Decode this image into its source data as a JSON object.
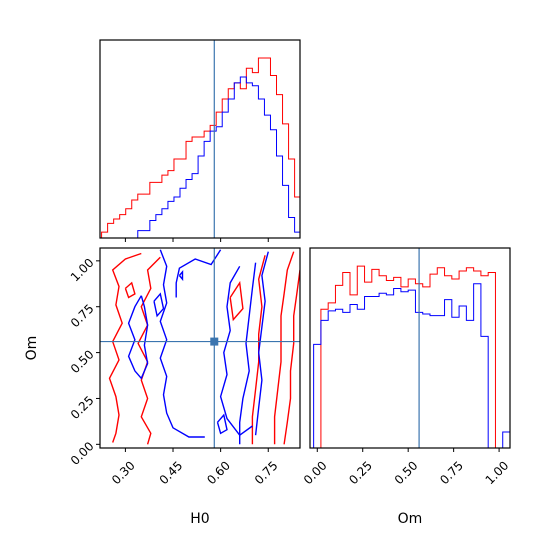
{
  "chart_data": {
    "type": "corner",
    "parameters": [
      "H0",
      "Om"
    ],
    "truth": {
      "H0": 0.58,
      "Om": 0.56
    },
    "colors": {
      "red_chain": "#ff0000",
      "blue_chain": "#0000ff",
      "truth_line": "#3b75af",
      "axes": "#000000"
    },
    "panels": [
      {
        "id": "h0-marginal",
        "type": "step-histogram",
        "xlabel": "",
        "xlim": [
          0.22,
          0.85
        ],
        "show_tick_labels": false,
        "x_ticks": [
          0.3,
          0.45,
          0.6,
          0.75
        ],
        "bin_edges": [
          0.225,
          0.244,
          0.263,
          0.282,
          0.301,
          0.32,
          0.339,
          0.358,
          0.377,
          0.396,
          0.415,
          0.434,
          0.453,
          0.472,
          0.491,
          0.51,
          0.529,
          0.548,
          0.567,
          0.586,
          0.605,
          0.624,
          0.643,
          0.662,
          0.681,
          0.7,
          0.719,
          0.738,
          0.757,
          0.776,
          0.795,
          0.814,
          0.833,
          0.852
        ],
        "series": [
          {
            "name": "",
            "color": "#ff0000",
            "counts": [
              0.4,
              1.0,
              1.3,
              1.6,
              2.0,
              2.6,
              3.0,
              3.0,
              3.8,
              3.8,
              4.3,
              4.6,
              5.4,
              5.4,
              6.6,
              6.9,
              6.9,
              7.3,
              7.7,
              8.6,
              9.5,
              10.2,
              10.6,
              10.2,
              11.6,
              11.3,
              12.3,
              12.3,
              11.1,
              9.8,
              7.8,
              5.4,
              2.8,
              0.4
            ]
          },
          {
            "name": "",
            "color": "#0000ff",
            "counts": [
              0,
              0,
              0,
              0,
              0,
              0,
              0.5,
              0.5,
              1.2,
              1.6,
              2.0,
              2.5,
              2.8,
              3.4,
              4.0,
              4.4,
              5.6,
              6.6,
              7.3,
              7.6,
              8.6,
              9.5,
              10.6,
              11.0,
              10.6,
              10.4,
              9.5,
              8.4,
              7.4,
              5.6,
              3.6,
              1.4,
              0.4,
              0
            ]
          }
        ]
      },
      {
        "id": "joint-contour",
        "type": "contour",
        "xlabel": "H0",
        "ylabel": "Om",
        "xlim": [
          0.22,
          0.85
        ],
        "ylim": [
          -0.02,
          1.07
        ],
        "x_ticks": [
          0.3,
          0.45,
          0.6,
          0.75
        ],
        "x_tick_labels": [
          "0.30",
          "0.45",
          "0.60",
          "0.75"
        ],
        "y_ticks": [
          0.0,
          0.25,
          0.5,
          0.75,
          1.0
        ],
        "y_tick_labels": [
          "0.00",
          "0.25",
          "0.50",
          "0.75",
          "1.00"
        ],
        "series": [
          {
            "name": "",
            "color": "#ff0000",
            "contours": [
              [
                [
                  0.35,
                  1.04
                ],
                [
                  0.3,
                  1.01
                ],
                [
                  0.26,
                  0.95
                ],
                [
                  0.28,
                  0.86
                ],
                [
                  0.27,
                  0.76
                ],
                [
                  0.29,
                  0.66
                ],
                [
                  0.26,
                  0.56
                ],
                [
                  0.28,
                  0.46
                ],
                [
                  0.25,
                  0.36
                ],
                [
                  0.27,
                  0.26
                ],
                [
                  0.28,
                  0.16
                ],
                [
                  0.27,
                  0.06
                ],
                [
                  0.26,
                  0.01
                ]
              ],
              [
                [
                  0.41,
                  1.02
                ],
                [
                  0.37,
                  0.95
                ],
                [
                  0.38,
                  0.85
                ],
                [
                  0.35,
                  0.75
                ],
                [
                  0.37,
                  0.65
                ],
                [
                  0.34,
                  0.55
                ],
                [
                  0.37,
                  0.45
                ],
                [
                  0.35,
                  0.35
                ],
                [
                  0.37,
                  0.25
                ],
                [
                  0.35,
                  0.15
                ],
                [
                  0.38,
                  0.06
                ],
                [
                  0.37,
                  0.0
                ]
              ],
              [
                [
                  0.74,
                  1.03
                ],
                [
                  0.72,
                  0.9
                ],
                [
                  0.73,
                  0.75
                ],
                [
                  0.72,
                  0.6
                ],
                [
                  0.72,
                  0.45
                ],
                [
                  0.71,
                  0.3
                ],
                [
                  0.7,
                  0.15
                ],
                [
                  0.7,
                  0.0
                ]
              ],
              [
                [
                  0.83,
                  1.05
                ],
                [
                  0.81,
                  0.95
                ],
                [
                  0.8,
                  0.82
                ],
                [
                  0.79,
                  0.7
                ],
                [
                  0.79,
                  0.56
                ],
                [
                  0.79,
                  0.45
                ],
                [
                  0.78,
                  0.3
                ],
                [
                  0.77,
                  0.15
                ],
                [
                  0.77,
                  0.0
                ]
              ],
              [
                [
                  0.85,
                  0.95
                ],
                [
                  0.84,
                  0.82
                ],
                [
                  0.83,
                  0.7
                ],
                [
                  0.83,
                  0.55
                ],
                [
                  0.82,
                  0.4
                ],
                [
                  0.82,
                  0.25
                ],
                [
                  0.81,
                  0.12
                ],
                [
                  0.8,
                  0.0
                ]
              ],
              [
                [
                  0.3,
                  0.85
                ],
                [
                  0.32,
                  0.88
                ],
                [
                  0.33,
                  0.82
                ],
                [
                  0.31,
                  0.8
                ],
                [
                  0.3,
                  0.85
                ]
              ],
              [
                [
                  0.63,
                  0.8
                ],
                [
                  0.66,
                  0.88
                ],
                [
                  0.67,
                  0.74
                ],
                [
                  0.64,
                  0.68
                ],
                [
                  0.63,
                  0.8
                ]
              ]
            ]
          },
          {
            "name": "",
            "color": "#0000ff",
            "contours": [
              [
                [
                  0.41,
                  1.06
                ],
                [
                  0.43,
                  0.97
                ],
                [
                  0.42,
                  0.87
                ],
                [
                  0.43,
                  0.77
                ],
                [
                  0.41,
                  0.67
                ],
                [
                  0.43,
                  0.57
                ],
                [
                  0.41,
                  0.47
                ],
                [
                  0.43,
                  0.37
                ],
                [
                  0.42,
                  0.27
                ],
                [
                  0.43,
                  0.17
                ],
                [
                  0.45,
                  0.09
                ],
                [
                  0.5,
                  0.04
                ],
                [
                  0.55,
                  0.04
                ]
              ],
              [
                [
                  0.6,
                  1.06
                ],
                [
                  0.57,
                  0.98
                ],
                [
                  0.52,
                  1.01
                ],
                [
                  0.47,
                  0.96
                ],
                [
                  0.46,
                  0.88
                ],
                [
                  0.46,
                  0.8
                ]
              ],
              [
                [
                  0.35,
                  0.81
                ],
                [
                  0.33,
                  0.75
                ],
                [
                  0.31,
                  0.66
                ],
                [
                  0.33,
                  0.57
                ],
                [
                  0.31,
                  0.48
                ],
                [
                  0.33,
                  0.4
                ],
                [
                  0.35,
                  0.36
                ],
                [
                  0.37,
                  0.44
                ],
                [
                  0.36,
                  0.54
                ],
                [
                  0.37,
                  0.65
                ],
                [
                  0.36,
                  0.75
                ],
                [
                  0.35,
                  0.81
                ]
              ],
              [
                [
                  0.66,
                  0.97
                ],
                [
                  0.63,
                  0.88
                ],
                [
                  0.62,
                  0.75
                ],
                [
                  0.63,
                  0.62
                ],
                [
                  0.61,
                  0.5
                ],
                [
                  0.62,
                  0.38
                ],
                [
                  0.6,
                  0.26
                ],
                [
                  0.62,
                  0.14
                ],
                [
                  0.66,
                  0.05
                ],
                [
                  0.7,
                  0.1
                ]
              ],
              [
                [
                  0.71,
                  0.99
                ],
                [
                  0.7,
                  0.85
                ],
                [
                  0.69,
                  0.7
                ],
                [
                  0.68,
                  0.55
                ],
                [
                  0.69,
                  0.4
                ],
                [
                  0.67,
                  0.25
                ],
                [
                  0.66,
                  0.12
                ],
                [
                  0.66,
                  0.0
                ]
              ],
              [
                [
                  0.75,
                  1.05
                ],
                [
                  0.73,
                  0.92
                ],
                [
                  0.74,
                  0.78
                ],
                [
                  0.73,
                  0.64
                ],
                [
                  0.72,
                  0.5
                ],
                [
                  0.73,
                  0.35
                ],
                [
                  0.72,
                  0.2
                ],
                [
                  0.71,
                  0.05
                ]
              ],
              [
                [
                  0.39,
                  0.78
                ],
                [
                  0.41,
                  0.82
                ],
                [
                  0.42,
                  0.74
                ],
                [
                  0.4,
                  0.7
                ],
                [
                  0.39,
                  0.78
                ]
              ],
              [
                [
                  0.47,
                  0.92
                ],
                [
                  0.48,
                  0.94
                ],
                [
                  0.48,
                  0.9
                ],
                [
                  0.47,
                  0.92
                ]
              ],
              [
                [
                  0.59,
                  0.12
                ],
                [
                  0.61,
                  0.16
                ],
                [
                  0.62,
                  0.08
                ],
                [
                  0.6,
                  0.06
                ],
                [
                  0.59,
                  0.12
                ]
              ]
            ]
          }
        ]
      },
      {
        "id": "om-marginal",
        "type": "step-histogram",
        "xlabel": "Om",
        "xlim": [
          -0.04,
          1.06
        ],
        "x_ticks": [
          0.0,
          0.25,
          0.5,
          0.75,
          1.0
        ],
        "x_tick_labels": [
          "0.00",
          "0.25",
          "0.50",
          "0.75",
          "1.00"
        ],
        "bin_edges": [
          -0.02,
          0.02,
          0.06,
          0.1,
          0.14,
          0.18,
          0.22,
          0.26,
          0.3,
          0.34,
          0.38,
          0.42,
          0.46,
          0.5,
          0.54,
          0.58,
          0.62,
          0.66,
          0.7,
          0.74,
          0.78,
          0.82,
          0.86,
          0.9,
          0.94,
          0.98,
          1.02,
          1.06
        ],
        "series": [
          {
            "name": "",
            "color": "#ff0000",
            "counts": [
              0,
              8.7,
              9.1,
              10.2,
              11.0,
              9.6,
              11.4,
              10.4,
              11.2,
              10.8,
              10.5,
              10.7,
              10.1,
              10.6,
              10.3,
              10.1,
              10.9,
              11.3,
              10.8,
              10.6,
              11.1,
              11.3,
              11.1,
              10.8,
              11.0,
              0,
              0
            ]
          },
          {
            "name": "",
            "color": "#0000ff",
            "counts": [
              6.5,
              8.0,
              8.6,
              8.7,
              8.5,
              9.0,
              8.7,
              9.5,
              9.5,
              9.7,
              9.6,
              10.0,
              9.8,
              9.9,
              8.5,
              8.4,
              8.3,
              8.3,
              9.3,
              8.2,
              8.9,
              8.0,
              10.3,
              7.0,
              0,
              0,
              1.0
            ]
          }
        ]
      }
    ]
  }
}
